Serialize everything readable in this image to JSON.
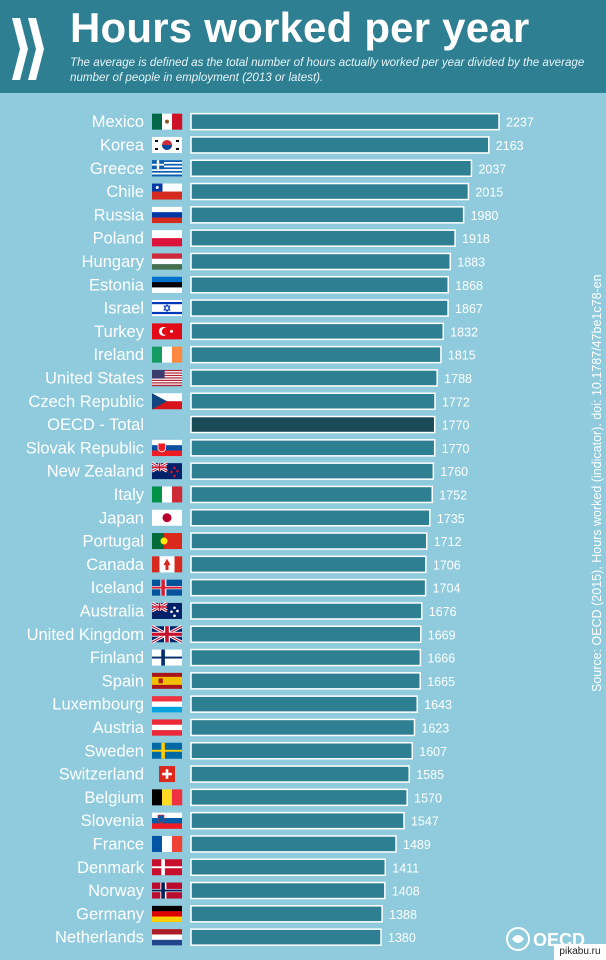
{
  "header": {
    "title": "Hours worked per year",
    "subtitle": "The average is defined as the total number of hours actually worked per year divided by the average number of people in employment (2013 or latest)."
  },
  "source": "Source: OECD (2015), Hours worked (indicator). doi: 10.1787/47be1c78-en",
  "logo_text": "OECD",
  "watermark": "pikabu.ru",
  "colors": {
    "bar": "#2e7f91",
    "highlight_bar": "#1a4a56",
    "bar_border": "#ffffff",
    "background": "#8fcbdc",
    "header": "#2e7f91"
  },
  "chart_data": {
    "type": "bar",
    "orientation": "horizontal",
    "title": "Hours worked per year",
    "categories": [
      "Mexico",
      "Korea",
      "Greece",
      "Chile",
      "Russia",
      "Poland",
      "Hungary",
      "Estonia",
      "Israel",
      "Turkey",
      "Ireland",
      "United States",
      "Czech Republic",
      "OECD - Total",
      "Slovak Republic",
      "New Zealand",
      "Italy",
      "Japan",
      "Portugal",
      "Canada",
      "Iceland",
      "Australia",
      "United Kingdom",
      "Finland",
      "Spain",
      "Luxembourg",
      "Austria",
      "Sweden",
      "Switzerland",
      "Belgium",
      "Slovenia",
      "France",
      "Denmark",
      "Norway",
      "Germany",
      "Netherlands"
    ],
    "values": [
      2237,
      2163,
      2037,
      2015,
      1980,
      1918,
      1883,
      1868,
      1867,
      1832,
      1815,
      1788,
      1772,
      1770,
      1770,
      1760,
      1752,
      1735,
      1712,
      1706,
      1704,
      1676,
      1669,
      1666,
      1665,
      1643,
      1623,
      1607,
      1585,
      1570,
      1547,
      1489,
      1411,
      1408,
      1388,
      1380
    ],
    "highlight": "OECD - Total",
    "flags": [
      "mexico-flag-icon",
      "korea-flag-icon",
      "greece-flag-icon",
      "chile-flag-icon",
      "russia-flag-icon",
      "poland-flag-icon",
      "hungary-flag-icon",
      "estonia-flag-icon",
      "israel-flag-icon",
      "turkey-flag-icon",
      "ireland-flag-icon",
      "united-states-flag-icon",
      "czech-republic-flag-icon",
      "",
      "slovak-republic-flag-icon",
      "new-zealand-flag-icon",
      "italy-flag-icon",
      "japan-flag-icon",
      "portugal-flag-icon",
      "canada-flag-icon",
      "iceland-flag-icon",
      "australia-flag-icon",
      "united-kingdom-flag-icon",
      "finland-flag-icon",
      "spain-flag-icon",
      "luxembourg-flag-icon",
      "austria-flag-icon",
      "sweden-flag-icon",
      "switzerland-flag-icon",
      "belgium-flag-icon",
      "slovenia-flag-icon",
      "france-flag-icon",
      "denmark-flag-icon",
      "norway-flag-icon",
      "germany-flag-icon",
      "netherlands-flag-icon"
    ],
    "xlim": [
      0,
      2237
    ],
    "grid": false,
    "legend": "none"
  }
}
